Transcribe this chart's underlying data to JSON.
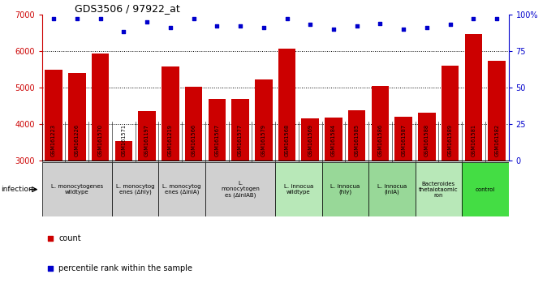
{
  "title": "GDS3506 / 97922_at",
  "samples": [
    "GSM161223",
    "GSM161226",
    "GSM161570",
    "GSM161571",
    "GSM161197",
    "GSM161219",
    "GSM161566",
    "GSM161567",
    "GSM161577",
    "GSM161579",
    "GSM161568",
    "GSM161569",
    "GSM161584",
    "GSM161585",
    "GSM161586",
    "GSM161587",
    "GSM161588",
    "GSM161589",
    "GSM161581",
    "GSM161582"
  ],
  "counts": [
    5480,
    5390,
    5930,
    3540,
    4350,
    5570,
    5020,
    4680,
    4680,
    5220,
    6060,
    4160,
    4190,
    4370,
    5040,
    4200,
    4310,
    5600,
    6460,
    5740
  ],
  "percentile_ranks": [
    97,
    97,
    97,
    88,
    95,
    91,
    97,
    92,
    92,
    91,
    97,
    93,
    90,
    92,
    94,
    90,
    91,
    93,
    97,
    97
  ],
  "bar_color": "#cc0000",
  "dot_color": "#0000cc",
  "ylim_left": [
    3000,
    7000
  ],
  "ylim_right": [
    0,
    100
  ],
  "yticks_left": [
    3000,
    4000,
    5000,
    6000,
    7000
  ],
  "yticks_right": [
    0,
    25,
    50,
    75,
    100
  ],
  "ytick_labels_right": [
    "0",
    "25",
    "50",
    "75",
    "100%"
  ],
  "dotted_line_values": [
    4000,
    5000,
    6000
  ],
  "groups": [
    {
      "label": "L. monocytogenes\nwildtype",
      "start": 0,
      "end": 3,
      "color": "#d0d0d0"
    },
    {
      "label": "L. monocytog\nenes (Δhly)",
      "start": 3,
      "end": 5,
      "color": "#d0d0d0"
    },
    {
      "label": "L. monocytog\nenes (ΔinlA)",
      "start": 5,
      "end": 7,
      "color": "#d0d0d0"
    },
    {
      "label": "L.\nmonocytogen\nes (ΔinlAB)",
      "start": 7,
      "end": 10,
      "color": "#d0d0d0"
    },
    {
      "label": "L. innocua\nwildtype",
      "start": 10,
      "end": 12,
      "color": "#b8e8b8"
    },
    {
      "label": "L. innocua\n(hly)",
      "start": 12,
      "end": 14,
      "color": "#98d898"
    },
    {
      "label": "L. innocua\n(inlA)",
      "start": 14,
      "end": 16,
      "color": "#98d898"
    },
    {
      "label": "Bacteroides\nthetaiotaomic\nron",
      "start": 16,
      "end": 18,
      "color": "#b8e8b8"
    },
    {
      "label": "control",
      "start": 18,
      "end": 20,
      "color": "#44dd44"
    }
  ],
  "infection_label": "infection",
  "legend_count_label": "count",
  "legend_pct_label": "percentile rank within the sample",
  "bg_color": "#ffffff"
}
